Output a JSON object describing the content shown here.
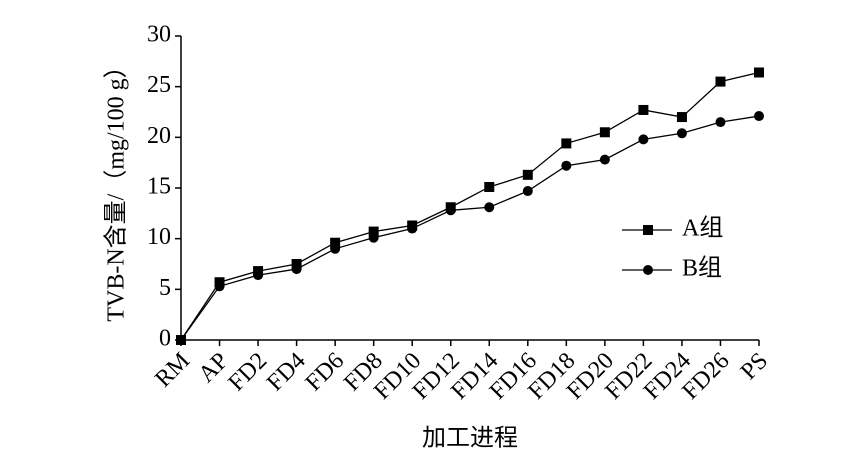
{
  "chart_data": {
    "type": "line",
    "x_label": "加工进程",
    "y_label": "TVB-N含量/（mg/100 g）",
    "categories": [
      "RM",
      "AP",
      "FD2",
      "FD4",
      "FD6",
      "FD8",
      "FD10",
      "FD12",
      "FD14",
      "FD16",
      "FD18",
      "FD20",
      "FD22",
      "FD24",
      "FD26",
      "PS"
    ],
    "series": [
      {
        "name": "A组",
        "color": "#000000",
        "marker": "square",
        "values": [
          0,
          5.7,
          6.8,
          7.5,
          9.6,
          10.7,
          11.3,
          13.1,
          15.1,
          16.3,
          19.4,
          20.5,
          22.7,
          22.0,
          25.5,
          26.4
        ]
      },
      {
        "name": "B组",
        "color": "#000000",
        "marker": "circle",
        "values": [
          0,
          5.3,
          6.4,
          7.0,
          9.0,
          10.1,
          11.0,
          12.8,
          13.1,
          14.7,
          17.2,
          17.8,
          19.8,
          20.4,
          21.5,
          22.1
        ]
      }
    ],
    "ylim": [
      0,
      30
    ],
    "yticks": [
      0,
      5,
      10,
      15,
      20,
      25,
      30
    ]
  }
}
